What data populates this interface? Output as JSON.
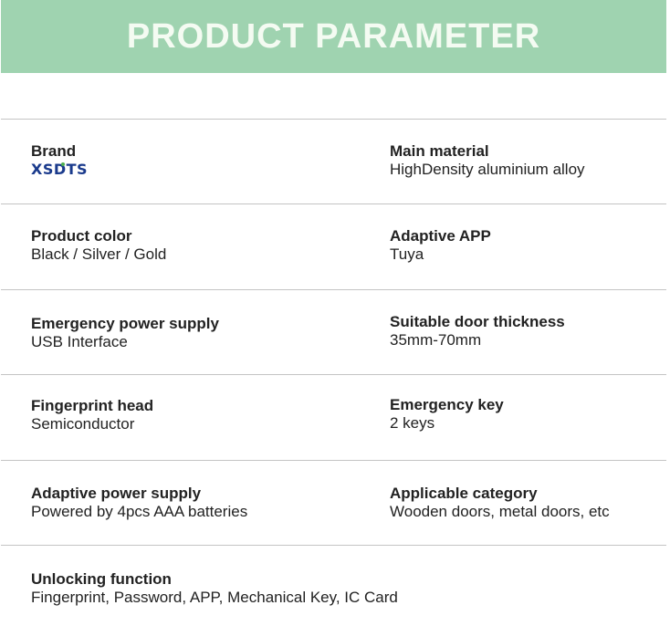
{
  "title": "PRODUCT PARAMETER",
  "brand": {
    "label": "Brand",
    "logo_text": "XSDTS"
  },
  "params": [
    {
      "label": "Main material",
      "value": "HighDensity aluminium alloy"
    },
    {
      "label": "Product color",
      "value": "Black / Silver / Gold"
    },
    {
      "label": "Adaptive APP",
      "value": "Tuya"
    },
    {
      "label": "Emergency power supply",
      "value": "USB Interface"
    },
    {
      "label": "Suitable door thickness",
      "value": "35mm-70mm"
    },
    {
      "label": "Fingerprint head",
      "value": "Semiconductor"
    },
    {
      "label": "Emergency key",
      "value": "2 keys"
    },
    {
      "label": "Adaptive power supply",
      "value": "Powered by 4pcs AAA batteries"
    },
    {
      "label": "Applicable category",
      "value": "Wooden doors, metal doors, etc"
    },
    {
      "label": "Unlocking function",
      "value": "Fingerprint, Password, APP, Mechanical Key, IC Card"
    }
  ],
  "colors": {
    "header": "#9fd3b0",
    "logo": "#1a3a8c"
  }
}
